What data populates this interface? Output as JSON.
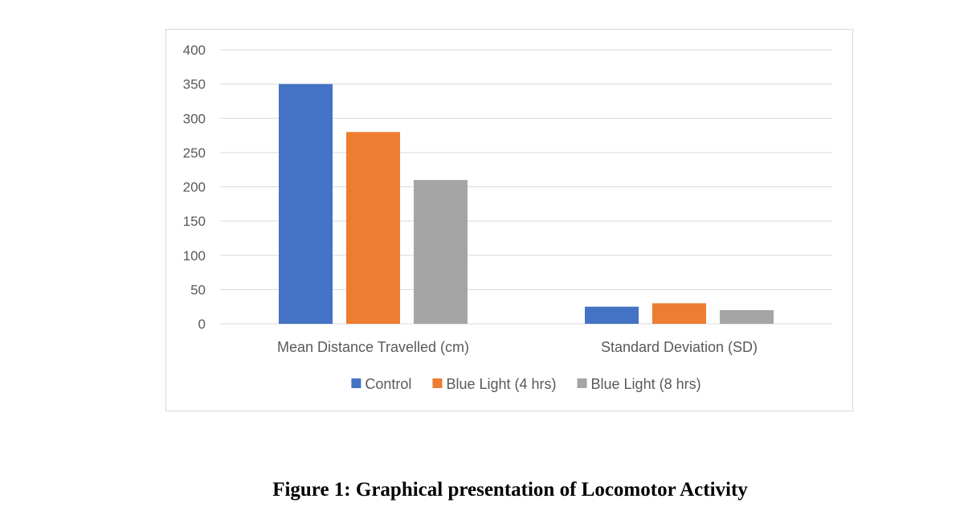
{
  "caption": "Figure 1: Graphical presentation of Locomotor Activity",
  "chart_data": {
    "type": "bar",
    "title": "",
    "xlabel": "",
    "ylabel": "",
    "categories": [
      "Mean Distance Travelled (cm)",
      "Standard Deviation (SD)"
    ],
    "series": [
      {
        "name": "Control",
        "color": "#4472c4",
        "values": [
          350,
          25
        ]
      },
      {
        "name": "Blue Light (4 hrs)",
        "color": "#ed7d31",
        "values": [
          280,
          30
        ]
      },
      {
        "name": "Blue Light (8 hrs)",
        "color": "#a5a5a5",
        "values": [
          210,
          20
        ]
      }
    ],
    "ylim": [
      0,
      400
    ],
    "yticks": [
      0,
      50,
      100,
      150,
      200,
      250,
      300,
      350,
      400
    ],
    "grid": true,
    "gridline_color": "#d9d9d9",
    "legend_position": "bottom"
  }
}
